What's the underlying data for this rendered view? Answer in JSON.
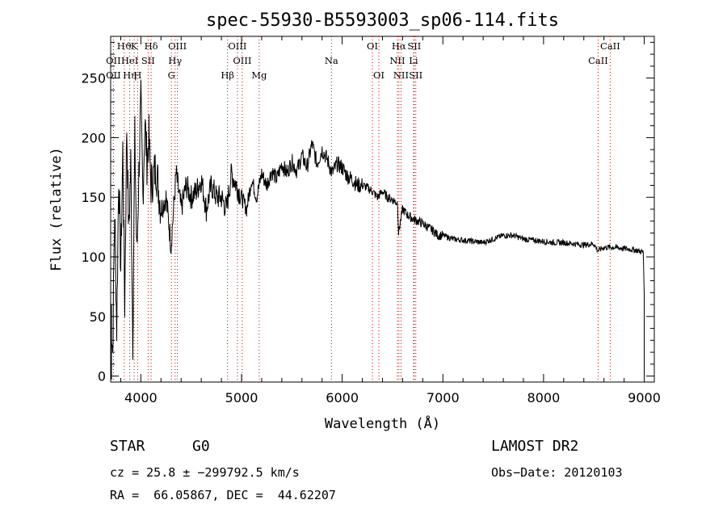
{
  "chart_data": {
    "type": "line",
    "title": "spec-55930-B5593003_sp06-114.fits",
    "xlabel": "Wavelength (Å)",
    "ylabel": "Flux (relative)",
    "xlim": [
      3700,
      9100
    ],
    "ylim": [
      -5,
      285
    ],
    "xticks": [
      4000,
      5000,
      6000,
      7000,
      8000,
      9000
    ],
    "yticks": [
      0,
      50,
      100,
      150,
      200,
      250
    ],
    "line_color": "#000000",
    "marker_color": "#cc0000",
    "series": [
      {
        "x": [
          3700,
          3720,
          3740,
          3760,
          3780,
          3800,
          3820,
          3840,
          3860,
          3880,
          3900,
          3920,
          3940,
          3960,
          3980,
          4000,
          4020,
          4040,
          4060,
          4080,
          4100,
          4150,
          4200,
          4250,
          4300,
          4350,
          4400,
          4450,
          4500,
          4550,
          4600,
          4650,
          4700,
          4750,
          4800,
          4850,
          4900,
          4950,
          5000,
          5050,
          5100,
          5150,
          5200,
          5250,
          5300,
          5350,
          5400,
          5450,
          5500,
          5550,
          5600,
          5650,
          5700,
          5750,
          5800,
          5850,
          5900,
          5950,
          6000,
          6050,
          6100,
          6150,
          6200,
          6250,
          6300,
          6350,
          6400,
          6450,
          6500,
          6550,
          6560,
          6600,
          6650,
          6700,
          6750,
          6800,
          6850,
          6900,
          6950,
          7000,
          7100,
          7200,
          7300,
          7400,
          7500,
          7600,
          7700,
          7800,
          7900,
          8000,
          8100,
          8200,
          8300,
          8400,
          8500,
          8540,
          8600,
          8700,
          8800,
          8900,
          8990,
          9000
        ],
        "y": [
          60,
          20,
          140,
          40,
          170,
          90,
          190,
          60,
          210,
          120,
          180,
          30,
          200,
          100,
          170,
          230,
          150,
          215,
          180,
          200,
          160,
          175,
          140,
          150,
          110,
          170,
          140,
          160,
          150,
          155,
          165,
          140,
          160,
          150,
          150,
          140,
          170,
          160,
          150,
          140,
          165,
          150,
          170,
          160,
          172,
          165,
          178,
          170,
          180,
          172,
          185,
          175,
          195,
          178,
          190,
          182,
          170,
          178,
          175,
          168,
          165,
          160,
          160,
          158,
          155,
          150,
          155,
          150,
          148,
          145,
          120,
          140,
          135,
          132,
          130,
          128,
          125,
          122,
          118,
          118,
          115,
          114,
          113,
          112,
          115,
          118,
          118,
          115,
          114,
          113,
          112,
          112,
          111,
          110,
          111,
          105,
          108,
          108,
          107,
          106,
          104,
          70
        ]
      }
    ],
    "line_markers": {
      "top": [
        {
          "label": "Hϑ",
          "x": 3835
        },
        {
          "label": "K",
          "x": 3933
        },
        {
          "label": "Hδ",
          "x": 4102
        },
        {
          "label": "OIII",
          "x": 4363
        },
        {
          "label": "OIII",
          "x": 4959
        },
        {
          "label": "OI",
          "x": 6300
        },
        {
          "label": "Hα",
          "x": 6563
        },
        {
          "label": "SII",
          "x": 6716
        },
        {
          "label": "CaII",
          "x": 8662
        }
      ],
      "row2": [
        {
          "label": "OII",
          "x": 3727
        },
        {
          "label": "HeI",
          "x": 3889
        },
        {
          "label": "SII",
          "x": 4072
        },
        {
          "label": "Hγ",
          "x": 4340
        },
        {
          "label": "OIII",
          "x": 5007
        },
        {
          "label": "Na",
          "x": 5893
        },
        {
          "label": "NII",
          "x": 6548
        },
        {
          "label": "Li",
          "x": 6708
        },
        {
          "label": "CaII",
          "x": 8542
        }
      ],
      "row3": [
        {
          "label": "OII",
          "x": 3727
        },
        {
          "label": "Hη",
          "x": 3889
        },
        {
          "label": "H",
          "x": 3968
        },
        {
          "label": "G",
          "x": 4304
        },
        {
          "label": "Hβ",
          "x": 4861
        },
        {
          "label": "Mg",
          "x": 5175
        },
        {
          "label": "OI",
          "x": 6364
        },
        {
          "label": "NII",
          "x": 6584
        },
        {
          "label": "SII",
          "x": 6731
        }
      ]
    }
  },
  "info": {
    "class_label": "STAR",
    "subclass": "G0",
    "survey": "LAMOST DR2",
    "cz": "cz = 25.8 ± −299792.5 km/s",
    "obs_date": "Obs−Date: 20120103",
    "coords": "RA =  66.05867, DEC =  44.62207"
  }
}
